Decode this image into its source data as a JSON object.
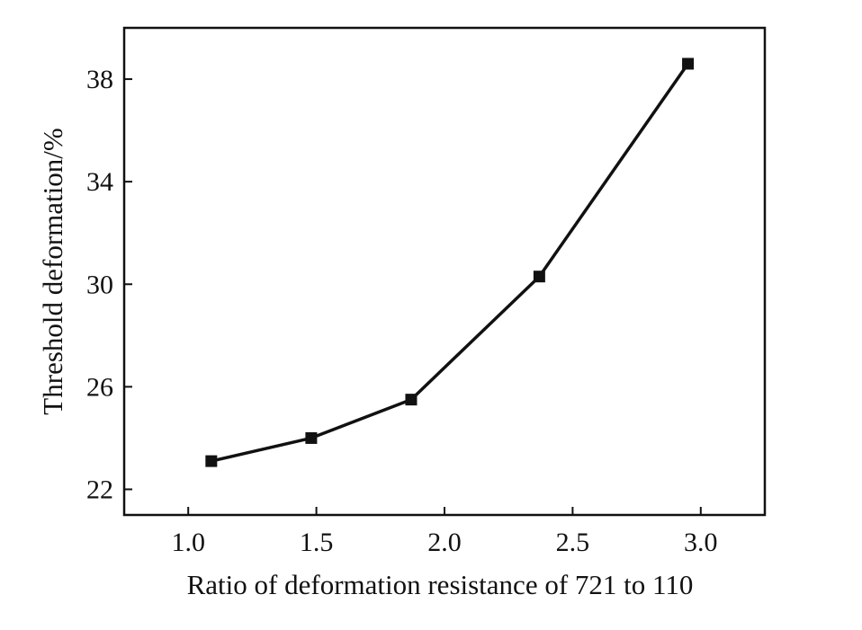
{
  "chart_data": {
    "type": "line",
    "title": "",
    "xlabel": "Ratio of deformation resistance of 721 to 110",
    "ylabel": "Threshold deformation/%",
    "xlim": [
      0.75,
      3.25
    ],
    "ylim": [
      21,
      40
    ],
    "xticks": [
      1.0,
      1.5,
      2.0,
      2.5,
      3.0
    ],
    "xtick_labels": [
      "1.0",
      "1.5",
      "2.0",
      "2.5",
      "3.0"
    ],
    "yticks": [
      22,
      26,
      30,
      34,
      38
    ],
    "ytick_labels": [
      "22",
      "26",
      "30",
      "34",
      "38"
    ],
    "grid": false,
    "legend": "none",
    "series": [
      {
        "x": [
          1.09,
          1.48,
          1.87,
          2.37,
          2.95
        ],
        "y": [
          23.1,
          24.0,
          25.5,
          30.3,
          38.6
        ]
      }
    ],
    "colors": {
      "line": "#111111",
      "marker": "#111111",
      "axes": "#111111"
    }
  }
}
